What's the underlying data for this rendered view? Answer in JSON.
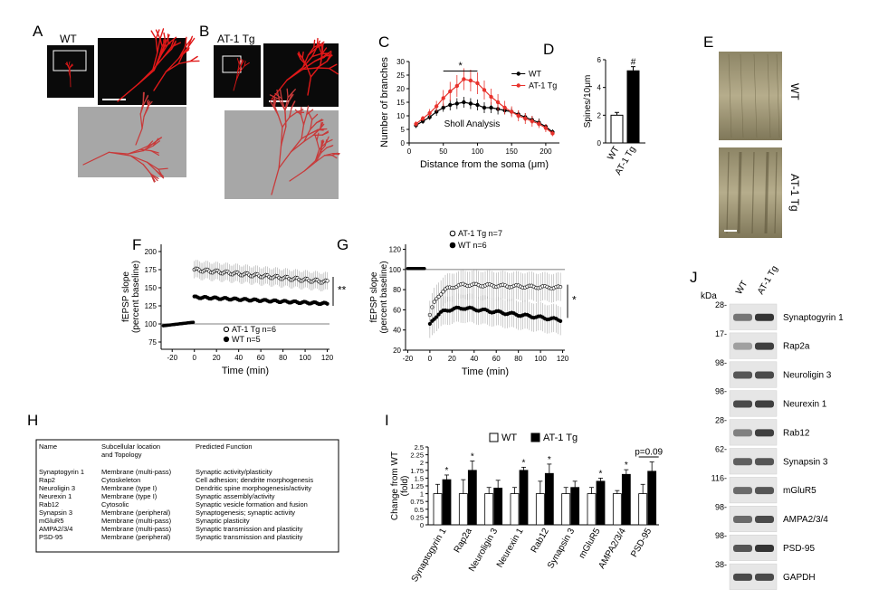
{
  "panel_letters": [
    "A",
    "B",
    "C",
    "D",
    "E",
    "F",
    "G",
    "H",
    "I",
    "J"
  ],
  "panel_a": {
    "label": "WT"
  },
  "panel_b": {
    "label": "AT-1 Tg"
  },
  "panel_e": {
    "wt_label": "WT",
    "tg_label": "AT-1 Tg"
  },
  "colors": {
    "wt": "#000000",
    "tg": "#e8322c",
    "neuron": "#e01818",
    "trace_bg": "#a7a7a7"
  },
  "chart_data": [
    {
      "panel": "C",
      "type": "line",
      "title": "",
      "xlabel": "Distance from the soma (μm)",
      "ylabel": "Number of branches",
      "annotation": "Sholl Analysis",
      "sig": "*",
      "xlim": [
        0,
        220
      ],
      "ylim": [
        0,
        30
      ],
      "xticks": [
        "0",
        "50",
        "100",
        "150",
        "200"
      ],
      "yticks": [
        "0",
        "5",
        "10",
        "15",
        "20",
        "25",
        "30"
      ],
      "x": [
        10,
        20,
        30,
        40,
        50,
        60,
        70,
        80,
        90,
        100,
        110,
        120,
        130,
        140,
        150,
        160,
        170,
        180,
        190,
        200,
        210
      ],
      "series": [
        {
          "name": "WT",
          "values": [
            6.5,
            8,
            9.5,
            11.5,
            13,
            14,
            14.5,
            15,
            14.5,
            14,
            13,
            13,
            12.5,
            12,
            11.5,
            10.5,
            9.5,
            8.5,
            7.5,
            6,
            4
          ],
          "err": [
            1,
            1,
            1,
            1.5,
            1.5,
            2,
            2,
            2,
            2,
            2,
            2,
            2,
            2,
            1.5,
            1.5,
            1.5,
            1.5,
            1.5,
            1.5,
            1,
            1
          ]
        },
        {
          "name": "AT-1 Tg",
          "values": [
            7,
            9,
            11,
            13.5,
            16.5,
            19,
            21,
            23.5,
            23,
            22,
            19.5,
            17,
            15,
            13,
            11.5,
            10,
            9,
            8,
            7,
            5.5,
            3.5
          ],
          "err": [
            1,
            1,
            1.5,
            2,
            3,
            3.5,
            4,
            4,
            4,
            4,
            3.5,
            3,
            3,
            2.5,
            2,
            2,
            2,
            2,
            1.5,
            1.5,
            1
          ]
        }
      ],
      "legend": "top-right"
    },
    {
      "panel": "D",
      "type": "bar",
      "ylabel": "Spines/10μm",
      "ylim": [
        0,
        6
      ],
      "yticks": [
        "0",
        "2",
        "4",
        "6"
      ],
      "categories": [
        "WT",
        "AT-1 Tg"
      ],
      "values": [
        2.0,
        5.2
      ],
      "err": [
        0.2,
        0.3
      ],
      "sig": "#"
    },
    {
      "panel": "F",
      "type": "scatter",
      "xlabel": "Time (min)",
      "ylabel": "fEPSP slope",
      "ylabel2": "(percent baseline)",
      "xlim": [
        -30,
        122
      ],
      "ylim": [
        65,
        210
      ],
      "xticks": [
        "-20",
        "0",
        "20",
        "40",
        "60",
        "80",
        "100",
        "120"
      ],
      "yticks": [
        "75",
        "100",
        "125",
        "150",
        "175",
        "200"
      ],
      "baseline": 100,
      "sig": "**",
      "series": [
        {
          "name": "AT-1 Tg n=6",
          "marker": "open",
          "start": 175,
          "end": 158,
          "noise": 5
        },
        {
          "name": "WT n=5",
          "marker": "filled",
          "start": 137,
          "end": 128,
          "noise": 3
        }
      ],
      "legend": "bottom-center"
    },
    {
      "panel": "G",
      "type": "scatter",
      "xlabel": "Time (min)",
      "ylabel": "fEPSP slope",
      "ylabel2": "(percent baseline)",
      "xlim": [
        -22,
        122
      ],
      "ylim": [
        20,
        125
      ],
      "xticks": [
        "-20",
        "0",
        "20",
        "40",
        "60",
        "80",
        "100",
        "120"
      ],
      "yticks": [
        "20",
        "40",
        "60",
        "80",
        "100",
        "120"
      ],
      "baseline": 100,
      "sig": "*",
      "series": [
        {
          "name": "AT-1 Tg n=7",
          "marker": "open",
          "start": 55,
          "plateau": 85,
          "end": 82
        },
        {
          "name": "WT n=6",
          "marker": "filled",
          "start": 45,
          "plateau": 62,
          "end": 50
        }
      ],
      "legend": "top-left"
    },
    {
      "panel": "H",
      "type": "table",
      "columns": [
        "Name",
        "Subcellular location\nand Topology",
        "Predicted Function"
      ],
      "rows": [
        [
          "Synaptogyrin 1",
          "Membrane (multi-pass)",
          "Synaptic activity/plasticity"
        ],
        [
          "Rap2",
          "Cytoskeleton",
          "Cell adhesion; dendrite morphogenesis"
        ],
        [
          "Neuroligin 3",
          "Membrane (type I)",
          "Dendritic spine morphogenesis/activity"
        ],
        [
          "Neurexin 1",
          "Membrane (type I)",
          "Synaptic assembly/activity"
        ],
        [
          "Rab12",
          "Cytosolic",
          "Synaptic vesicle formation and fusion"
        ],
        [
          "Synapsin 3",
          "Membrane (peripheral)",
          "Synaptogenesis; synaptic activity"
        ],
        [
          "mGluR5",
          "Membrane (multi-pass)",
          "Synaptic plasticity"
        ],
        [
          "AMPA2/3/4",
          "Membrane (multi-pass)",
          "Synaptic transmission and plasticity"
        ],
        [
          "PSD-95",
          "Membrane (peripheral)",
          "Synaptic transmission and plasticity"
        ]
      ]
    },
    {
      "panel": "I",
      "type": "bar",
      "ylabel": "Change from WT",
      "ylabel2": "(fold)",
      "ylim": [
        0,
        2.5
      ],
      "yticks": [
        "0",
        "0.25",
        "0.5",
        "0.75",
        "1",
        "1.25",
        "1.5",
        "1.75",
        "2",
        "2.25",
        "2.5"
      ],
      "categories": [
        "Synaptogyrin 1",
        "Rap2a",
        "Neuroligin 3",
        "Neurexin 1",
        "Rab12",
        "Synapsin 3",
        "mGluR5",
        "AMPA2/3/4",
        "PSD-95"
      ],
      "series": [
        {
          "name": "WT",
          "values": [
            1,
            1,
            1,
            1,
            1,
            1,
            1,
            1,
            1
          ],
          "err": [
            0.3,
            0.45,
            0.2,
            0.2,
            0.4,
            0.2,
            0.2,
            0.1,
            0.3
          ]
        },
        {
          "name": "AT-1 Tg",
          "values": [
            1.45,
            1.75,
            1.18,
            1.75,
            1.65,
            1.2,
            1.4,
            1.62,
            1.72
          ],
          "err": [
            0.15,
            0.3,
            0.25,
            0.1,
            0.3,
            0.2,
            0.1,
            0.15,
            0.3
          ]
        }
      ],
      "sig": [
        "*",
        "*",
        "",
        "*",
        "*",
        "",
        "*",
        "*",
        ""
      ],
      "pvalue_note": "p=0.09",
      "legend": "top"
    },
    {
      "panel": "J",
      "type": "table",
      "unit": "kDa",
      "lanes": [
        "WT",
        "AT-1 Tg"
      ],
      "rows": [
        {
          "protein": "Synaptogyrin 1",
          "markers": [
            "28-"
          ],
          "wt": 0.55,
          "tg": 0.85
        },
        {
          "protein": "Rap2a",
          "markers": [
            "17-"
          ],
          "wt": 0.35,
          "tg": 0.8
        },
        {
          "protein": "Neuroligin 3",
          "markers": [
            "98-"
          ],
          "wt": 0.7,
          "tg": 0.75
        },
        {
          "protein": "Neurexin 1",
          "markers": [
            "98-"
          ],
          "wt": 0.75,
          "tg": 0.8
        },
        {
          "protein": "Rab12",
          "markers": [
            "28-"
          ],
          "wt": 0.5,
          "tg": 0.8
        },
        {
          "protein": "Synapsin 3",
          "markers": [
            "62-"
          ],
          "wt": 0.65,
          "tg": 0.7
        },
        {
          "protein": "mGluR5",
          "markers": [
            "116-"
          ],
          "wt": 0.6,
          "tg": 0.7
        },
        {
          "protein": "AMPA2/3/4",
          "markers": [
            "98-"
          ],
          "wt": 0.6,
          "tg": 0.75
        },
        {
          "protein": "PSD-95",
          "markers": [
            "98-"
          ],
          "wt": 0.7,
          "tg": 0.85
        },
        {
          "protein": "GAPDH",
          "markers": [
            "38-"
          ],
          "wt": 0.75,
          "tg": 0.75
        }
      ]
    }
  ]
}
